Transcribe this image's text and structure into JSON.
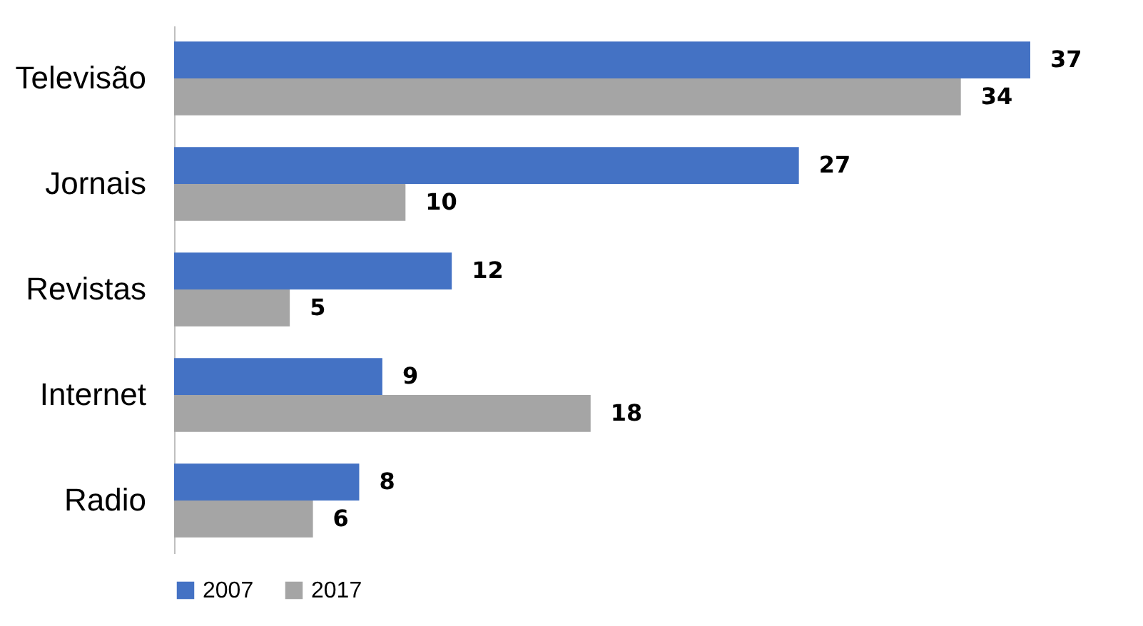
{
  "chart_data": {
    "type": "bar",
    "orientation": "horizontal",
    "categories": [
      "Televisão",
      "Jornais",
      "Revistas",
      "Internet",
      "Radio"
    ],
    "series": [
      {
        "name": "2007",
        "color": "#4472c4",
        "values": [
          37,
          27,
          12,
          9,
          8
        ]
      },
      {
        "name": "2017",
        "color": "#a5a5a5",
        "values": [
          34,
          10,
          5,
          18,
          6
        ]
      }
    ],
    "data_labels": true,
    "legend": "bottom",
    "grid": false
  }
}
